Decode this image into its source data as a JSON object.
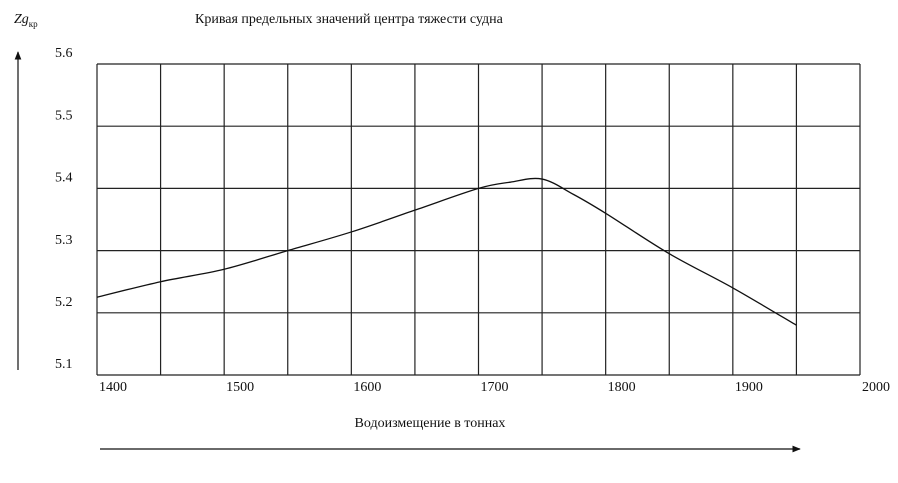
{
  "chart_data": {
    "type": "line",
    "title": "Кривая предельных значений центра тяжести судна",
    "y_label": "Zg",
    "y_label_sub": "кр",
    "x_label": "Водоизмещение в тоннах",
    "x": [
      1400,
      1450,
      1500,
      1550,
      1600,
      1650,
      1700,
      1725,
      1750,
      1775,
      1800,
      1850,
      1900,
      1950
    ],
    "series": [
      {
        "color": "#111111",
        "values": [
          5.225,
          5.25,
          5.27,
          5.3,
          5.33,
          5.365,
          5.4,
          5.41,
          5.415,
          5.39,
          5.36,
          5.295,
          5.24,
          5.18
        ]
      }
    ],
    "xlim": [
      1400,
      2000
    ],
    "ylim": [
      5.1,
      5.6
    ],
    "xticks": [
      1400,
      1500,
      1600,
      1700,
      1800,
      1900,
      2000
    ],
    "x_minor_ticks": [
      1450,
      1550,
      1650,
      1750,
      1850,
      1950
    ],
    "yticks": [
      5.1,
      5.2,
      5.3,
      5.4,
      5.5,
      5.6
    ],
    "grid": true
  }
}
